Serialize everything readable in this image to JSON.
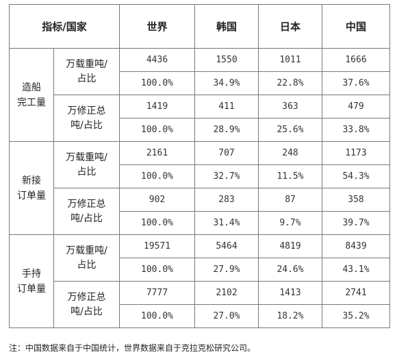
{
  "header": {
    "indicator": "指标/国家",
    "columns": [
      "世界",
      "韩国",
      "日本",
      "中国"
    ]
  },
  "groups": [
    {
      "category": "造船完工量",
      "category_lines": [
        "造船",
        "完工量"
      ],
      "units": [
        {
          "label_lines": [
            "万载重吨/",
            "占比"
          ],
          "values": [
            "4436",
            "1550",
            "1011",
            "1666"
          ],
          "shares": [
            "100.0%",
            "34.9%",
            "22.8%",
            "37.6%"
          ]
        },
        {
          "label_lines": [
            "万修正总",
            "吨/占比"
          ],
          "values": [
            "1419",
            "411",
            "363",
            "479"
          ],
          "shares": [
            "100.0%",
            "28.9%",
            "25.6%",
            "33.8%"
          ]
        }
      ]
    },
    {
      "category": "新接订单量",
      "category_lines": [
        "新接",
        "订单量"
      ],
      "units": [
        {
          "label_lines": [
            "万载重吨/",
            "占比"
          ],
          "values": [
            "2161",
            "707",
            "248",
            "1173"
          ],
          "shares": [
            "100.0%",
            "32.7%",
            "11.5%",
            "54.3%"
          ]
        },
        {
          "label_lines": [
            "万修正总",
            "吨/占比"
          ],
          "values": [
            "902",
            "283",
            "87",
            "358"
          ],
          "shares": [
            "100.0%",
            "31.4%",
            "9.7%",
            "39.7%"
          ]
        }
      ]
    },
    {
      "category": "手持订单量",
      "category_lines": [
        "手持",
        "订单量"
      ],
      "units": [
        {
          "label_lines": [
            "万载重吨/",
            "占比"
          ],
          "values": [
            "19571",
            "5464",
            "4819",
            "8439"
          ],
          "shares": [
            "100.0%",
            "27.9%",
            "24.6%",
            "43.1%"
          ]
        },
        {
          "label_lines": [
            "万修正总",
            "吨/占比"
          ],
          "values": [
            "7777",
            "2102",
            "1413",
            "2741"
          ],
          "shares": [
            "100.0%",
            "27.0%",
            "18.2%",
            "35.2%"
          ]
        }
      ]
    }
  ],
  "note": "注：中国数据来自于中国统计，世界数据来自于克拉克松研究公司。"
}
